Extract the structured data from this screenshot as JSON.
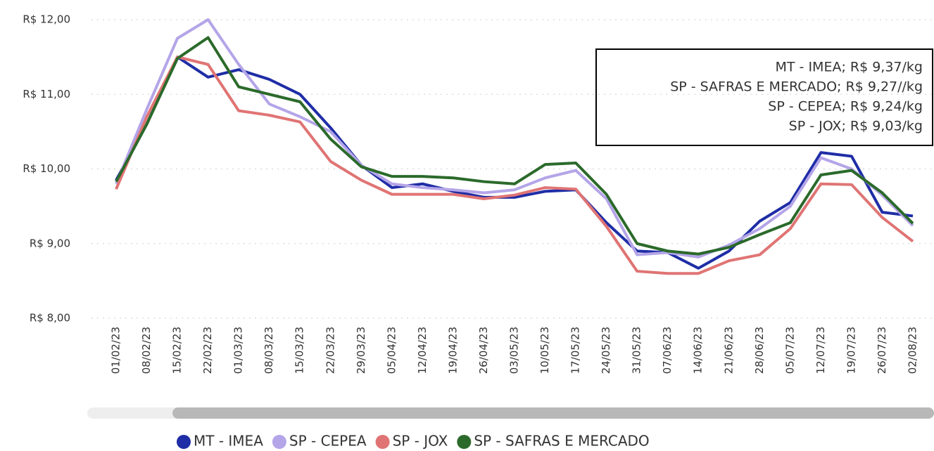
{
  "chart_data": {
    "type": "line",
    "categories": [
      "01/02/23",
      "08/02/23",
      "15/02/23",
      "22/02/23",
      "01/03/23",
      "08/03/23",
      "15/03/23",
      "22/03/23",
      "29/03/23",
      "05/04/23",
      "12/04/23",
      "19/04/23",
      "26/04/23",
      "03/05/23",
      "10/05/23",
      "17/05/23",
      "24/05/23",
      "31/05/23",
      "07/06/23",
      "14/06/23",
      "21/06/23",
      "28/06/23",
      "05/07/23",
      "12/07/23",
      "19/07/23",
      "26/07/23",
      "02/08/23"
    ],
    "series": [
      {
        "name": "MT - IMEA",
        "color": "#1f2da6",
        "values": [
          9.85,
          10.6,
          11.5,
          11.23,
          11.33,
          11.2,
          11.0,
          10.55,
          10.05,
          9.75,
          9.8,
          9.7,
          9.62,
          9.62,
          9.7,
          9.72,
          9.28,
          8.9,
          8.88,
          8.67,
          8.9,
          9.3,
          9.55,
          10.22,
          10.17,
          9.42,
          9.37
        ]
      },
      {
        "name": "SP - CEPEA",
        "color": "#b4a5e8",
        "values": [
          9.8,
          10.8,
          11.75,
          12.0,
          11.4,
          10.87,
          10.7,
          10.5,
          10.05,
          9.8,
          9.75,
          9.72,
          9.68,
          9.72,
          9.88,
          9.98,
          9.6,
          8.85,
          8.88,
          8.82,
          8.98,
          9.2,
          9.5,
          10.15,
          10.0,
          9.65,
          9.24
        ]
      },
      {
        "name": "SP - JOX",
        "color": "#e07474",
        "values": [
          9.73,
          10.7,
          11.5,
          11.4,
          10.78,
          10.72,
          10.63,
          10.1,
          9.85,
          9.66,
          9.66,
          9.66,
          9.6,
          9.65,
          9.75,
          9.73,
          9.23,
          8.63,
          8.6,
          8.6,
          8.77,
          8.85,
          9.2,
          9.8,
          9.79,
          9.35,
          9.03
        ]
      },
      {
        "name": "SP - SAFRAS E MERCADO",
        "color": "#2b6a2b",
        "values": [
          9.83,
          10.6,
          11.48,
          11.76,
          11.1,
          11.0,
          10.9,
          10.4,
          10.03,
          9.9,
          9.9,
          9.88,
          9.83,
          9.8,
          10.06,
          10.08,
          9.66,
          9.0,
          8.9,
          8.86,
          8.95,
          9.12,
          9.28,
          9.92,
          9.98,
          9.68,
          9.27
        ]
      }
    ],
    "ylim": [
      8,
      12
    ],
    "yticks": [
      {
        "value": 8,
        "label": "R$ 8,00"
      },
      {
        "value": 9,
        "label": "R$ 9,00"
      },
      {
        "value": 10,
        "label": "R$ 10,00"
      },
      {
        "value": 11,
        "label": "R$ 11,00"
      },
      {
        "value": 12,
        "label": "R$ 12,00"
      }
    ],
    "grid": true,
    "annotations": [
      "MT - IMEA; R$ 9,37/kg",
      "SP - SAFRAS E MERCADO; R$ 9,27//kg",
      "SP - CEPEA; R$ 9,24/kg",
      "SP - JOX; R$ 9,03/kg"
    ]
  }
}
